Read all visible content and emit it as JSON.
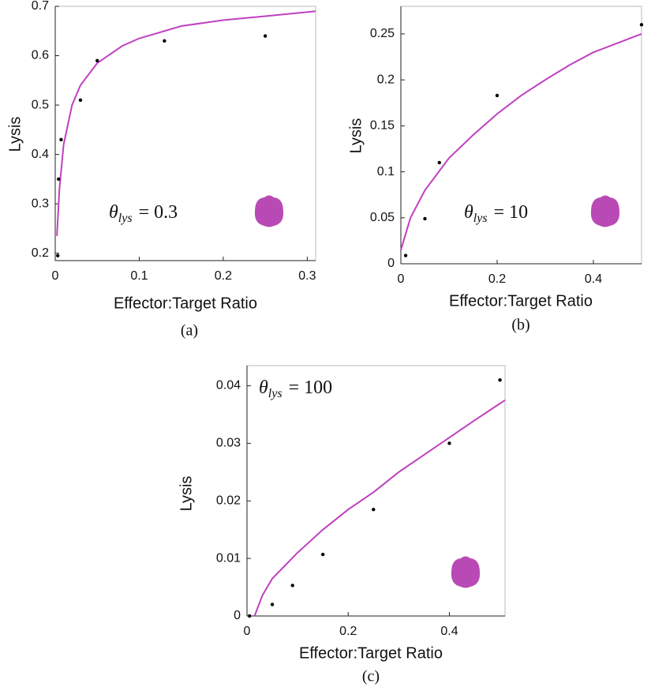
{
  "chart_data": [
    {
      "type": "scatter",
      "caption": "(a)",
      "x_label": "Effector:Target Ratio",
      "y_label": "Lysis",
      "annotation": {
        "symbol": "θ",
        "subscript": "lys",
        "text": "= 0.3"
      },
      "xlim": [
        0,
        0.31
      ],
      "ylim": [
        0.185,
        0.7
      ],
      "xticks": [
        0,
        0.1,
        0.2,
        0.3
      ],
      "yticks": [
        0.2,
        0.3,
        0.4,
        0.5,
        0.6,
        0.7
      ],
      "points": {
        "color": "#000000",
        "x": [
          0.003,
          0.004,
          0.007,
          0.03,
          0.05,
          0.13,
          0.25
        ],
        "y": [
          0.195,
          0.35,
          0.43,
          0.51,
          0.59,
          0.63,
          0.64
        ]
      },
      "curve": {
        "color": "#c040c0",
        "x": [
          0.002,
          0.005,
          0.01,
          0.02,
          0.03,
          0.05,
          0.08,
          0.1,
          0.15,
          0.2,
          0.25,
          0.31
        ],
        "y": [
          0.235,
          0.33,
          0.42,
          0.5,
          0.54,
          0.585,
          0.62,
          0.635,
          0.66,
          0.672,
          0.68,
          0.69
        ]
      }
    },
    {
      "type": "scatter",
      "caption": "(b)",
      "x_label": "Effector:Target Ratio",
      "y_label": "Lysis",
      "annotation": {
        "symbol": "θ",
        "subscript": "lys",
        "text": "= 10"
      },
      "xlim": [
        0,
        0.5
      ],
      "ylim": [
        0,
        0.28
      ],
      "xticks": [
        0,
        0.2,
        0.4
      ],
      "yticks": [
        0,
        0.05,
        0.1,
        0.15,
        0.2,
        0.25
      ],
      "points": {
        "color": "#000000",
        "x": [
          0.01,
          0.05,
          0.08,
          0.2,
          0.5
        ],
        "y": [
          0.009,
          0.049,
          0.11,
          0.183,
          0.26
        ]
      },
      "curve": {
        "color": "#c040c0",
        "x": [
          0,
          0.02,
          0.05,
          0.1,
          0.15,
          0.2,
          0.25,
          0.3,
          0.35,
          0.4,
          0.45,
          0.5
        ],
        "y": [
          0.015,
          0.05,
          0.08,
          0.115,
          0.14,
          0.163,
          0.183,
          0.2,
          0.216,
          0.23,
          0.24,
          0.25
        ]
      }
    },
    {
      "type": "scatter",
      "caption": "(c)",
      "x_label": "Effector:Target Ratio",
      "y_label": "Lysis",
      "annotation": {
        "symbol": "θ",
        "subscript": "lys",
        "text": "= 100"
      },
      "xlim": [
        0,
        0.51
      ],
      "ylim": [
        0,
        0.0435
      ],
      "xticks": [
        0,
        0.2,
        0.4
      ],
      "yticks": [
        0,
        0.01,
        0.02,
        0.03,
        0.04
      ],
      "points": {
        "color": "#000000",
        "x": [
          0.005,
          0.05,
          0.09,
          0.15,
          0.25,
          0.4,
          0.5
        ],
        "y": [
          0,
          0.002,
          0.0053,
          0.0107,
          0.0185,
          0.03,
          0.041
        ]
      },
      "curve": {
        "color": "#c040c0",
        "x": [
          0.015,
          0.03,
          0.05,
          0.1,
          0.15,
          0.2,
          0.25,
          0.3,
          0.35,
          0.4,
          0.45,
          0.51
        ],
        "y": [
          0,
          0.0035,
          0.0065,
          0.011,
          0.015,
          0.0185,
          0.0215,
          0.025,
          0.028,
          0.031,
          0.034,
          0.0375
        ]
      }
    }
  ]
}
